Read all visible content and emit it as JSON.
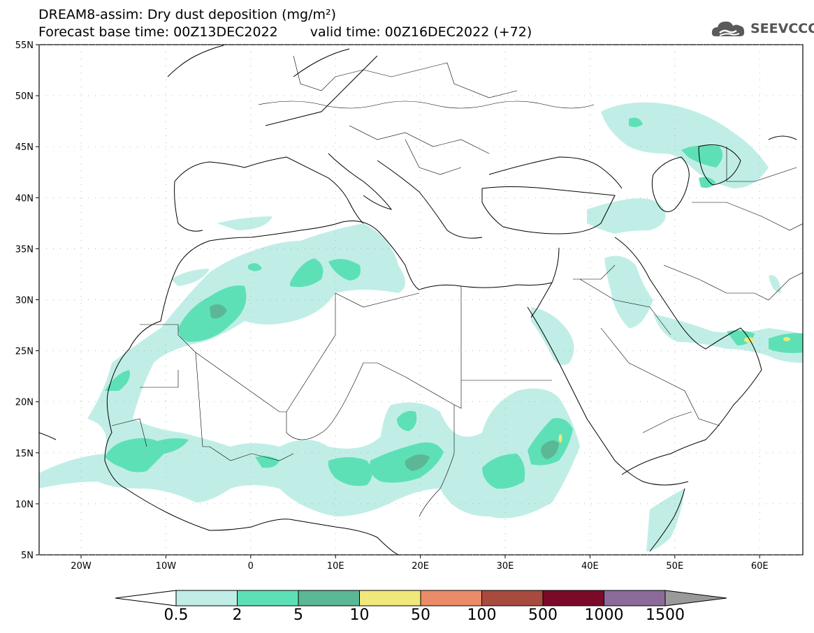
{
  "title": {
    "line1": "DREAM8-assim: Dry dust deposition (mg/m²)",
    "base_time": "Forecast base time: 00Z13DEC2022",
    "valid_time": "valid time: 00Z16DEC2022 (+72)"
  },
  "logo": {
    "text": "SEEVCCC",
    "icon": "cloud-icon"
  },
  "lat_labels": [
    "55N",
    "50N",
    "45N",
    "40N",
    "35N",
    "30N",
    "25N",
    "20N",
    "15N",
    "10N",
    "5N"
  ],
  "lon_labels": [
    "20W",
    "10W",
    "0",
    "10E",
    "20E",
    "30E",
    "40E",
    "50E",
    "60E"
  ],
  "colorbar": {
    "labels": [
      "0.5",
      "2",
      "5",
      "10",
      "50",
      "100",
      "500",
      "1000",
      "1500"
    ],
    "colors": [
      "#c0eee6",
      "#5ee0b6",
      "#5bb795",
      "#f0e87a",
      "#ea8c68",
      "#a94a3e",
      "#7a0a28",
      "#8c6a9a",
      "#9a9a9a"
    ],
    "under_color": "#ffffff"
  }
}
